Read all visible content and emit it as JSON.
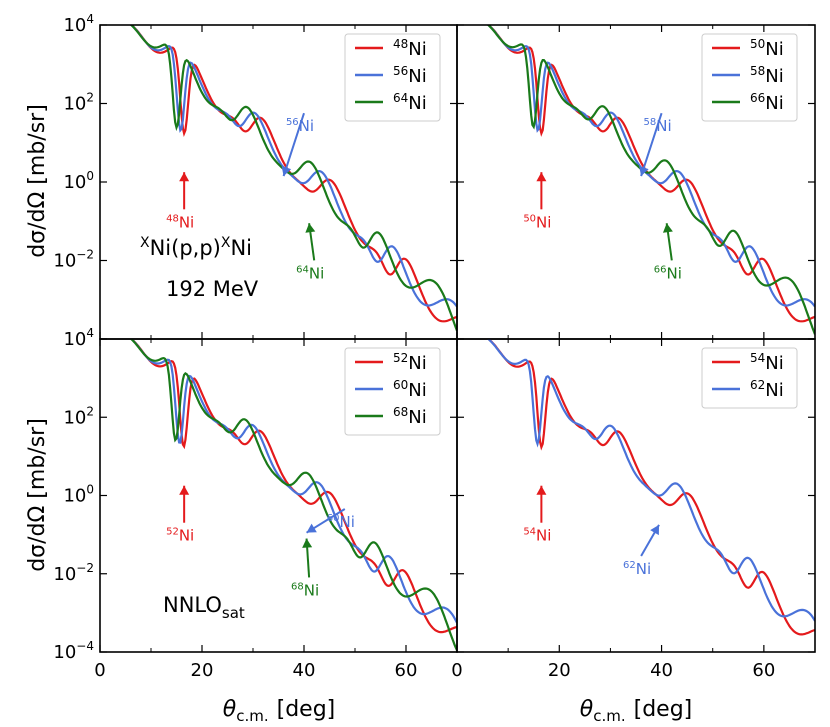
{
  "figure": {
    "ylabel": "dσ/dΩ [mb/sr]",
    "xlabel_theta": "θ",
    "xlabel_sub": "c.m.",
    "xlabel_unit": "[deg]",
    "reaction_label": {
      "pre": "X",
      "mid1": "Ni(p,p)",
      "sup2": "X",
      "mid2": "Ni"
    },
    "energy_label": "192 MeV",
    "method_label": {
      "main": "NNLO",
      "sub": "sat"
    },
    "colors": {
      "red": "#e41a1c",
      "blue": "#4a72d9",
      "green": "#1a7a1a"
    }
  },
  "chart_data": [
    {
      "type": "line",
      "panel": "top-left",
      "xlim": [
        0,
        70
      ],
      "ylim_log10": [
        -4,
        4
      ],
      "series": [
        {
          "name": "48Ni",
          "mass": "48",
          "color": "red",
          "min1": 16.5,
          "scale": 0.98
        },
        {
          "name": "56Ni",
          "mass": "56",
          "color": "blue",
          "min1": 15.8,
          "scale": 0.95
        },
        {
          "name": "64Ni",
          "mass": "64",
          "color": "green",
          "min1": 15.0,
          "scale": 0.91
        }
      ],
      "annotations": [
        {
          "mass": "48",
          "text": "Ni",
          "color": "red",
          "from": [
            16.5,
            -0.9
          ],
          "to": [
            16.5,
            0.25
          ]
        },
        {
          "mass": "56",
          "text": "Ni",
          "color": "blue",
          "from": [
            40,
            1.55
          ],
          "to": [
            36,
            0.15
          ]
        },
        {
          "mass": "64",
          "text": "Ni",
          "color": "green",
          "from": [
            42,
            -2.2
          ],
          "to": [
            41,
            -1.05
          ]
        }
      ]
    },
    {
      "type": "line",
      "panel": "top-right",
      "xlim": [
        0,
        70
      ],
      "ylim_log10": [
        -4,
        4
      ],
      "series": [
        {
          "name": "50Ni",
          "mass": "50",
          "color": "red",
          "min1": 16.5,
          "scale": 0.98
        },
        {
          "name": "58Ni",
          "mass": "58",
          "color": "blue",
          "min1": 15.8,
          "scale": 0.94
        },
        {
          "name": "66Ni",
          "mass": "66",
          "color": "green",
          "min1": 14.9,
          "scale": 0.9
        }
      ],
      "annotations": [
        {
          "mass": "50",
          "text": "Ni",
          "color": "red",
          "from": [
            16.5,
            -0.9
          ],
          "to": [
            16.5,
            0.25
          ]
        },
        {
          "mass": "58",
          "text": "Ni",
          "color": "blue",
          "from": [
            40,
            1.55
          ],
          "to": [
            36,
            0.15
          ]
        },
        {
          "mass": "66",
          "text": "Ni",
          "color": "green",
          "from": [
            42,
            -2.2
          ],
          "to": [
            41,
            -1.05
          ]
        }
      ]
    },
    {
      "type": "line",
      "panel": "bottom-left",
      "xlim": [
        0,
        70
      ],
      "ylim_log10": [
        -4,
        4
      ],
      "series": [
        {
          "name": "52Ni",
          "mass": "52",
          "color": "red",
          "min1": 16.4,
          "scale": 0.97
        },
        {
          "name": "60Ni",
          "mass": "60",
          "color": "blue",
          "min1": 15.6,
          "scale": 0.93
        },
        {
          "name": "68Ni",
          "mass": "68",
          "color": "green",
          "min1": 14.8,
          "scale": 0.89
        }
      ],
      "annotations": [
        {
          "mass": "52",
          "text": "Ni",
          "color": "red",
          "from": [
            16.5,
            -0.9
          ],
          "to": [
            16.5,
            0.25
          ]
        },
        {
          "mass": "60",
          "text": "Ni",
          "color": "blue",
          "from": [
            48,
            -0.55
          ],
          "to": [
            40.5,
            -0.95
          ]
        },
        {
          "mass": "68",
          "text": "Ni",
          "color": "green",
          "from": [
            41,
            -2.3
          ],
          "to": [
            40.5,
            -1.1
          ]
        }
      ]
    },
    {
      "type": "line",
      "panel": "bottom-right",
      "xlim": [
        0,
        70
      ],
      "ylim_log10": [
        -4,
        4
      ],
      "series": [
        {
          "name": "54Ni",
          "mass": "54",
          "color": "red",
          "min1": 16.5,
          "scale": 0.97
        },
        {
          "name": "62Ni",
          "mass": "62",
          "color": "blue",
          "min1": 15.7,
          "scale": 0.92
        }
      ],
      "annotations": [
        {
          "mass": "54",
          "text": "Ni",
          "color": "red",
          "from": [
            16.5,
            -0.9
          ],
          "to": [
            16.5,
            0.25
          ]
        },
        {
          "mass": "62",
          "text": "Ni",
          "color": "blue",
          "from": [
            36,
            -1.75
          ],
          "to": [
            39.5,
            -0.75
          ]
        }
      ]
    }
  ],
  "axes": {
    "x_ticks": [
      "0",
      "20",
      "40",
      "60"
    ],
    "x_tick_values": [
      0,
      20,
      40,
      60
    ],
    "y_ticks": [
      {
        "exp": -4,
        "base": "10",
        "sup": "−4"
      },
      {
        "exp": -2,
        "base": "10",
        "sup": "−2"
      },
      {
        "exp": 0,
        "base": "10",
        "sup": "0"
      },
      {
        "exp": 2,
        "base": "10",
        "sup": "2"
      },
      {
        "exp": 4,
        "base": "10",
        "sup": "4"
      }
    ]
  }
}
